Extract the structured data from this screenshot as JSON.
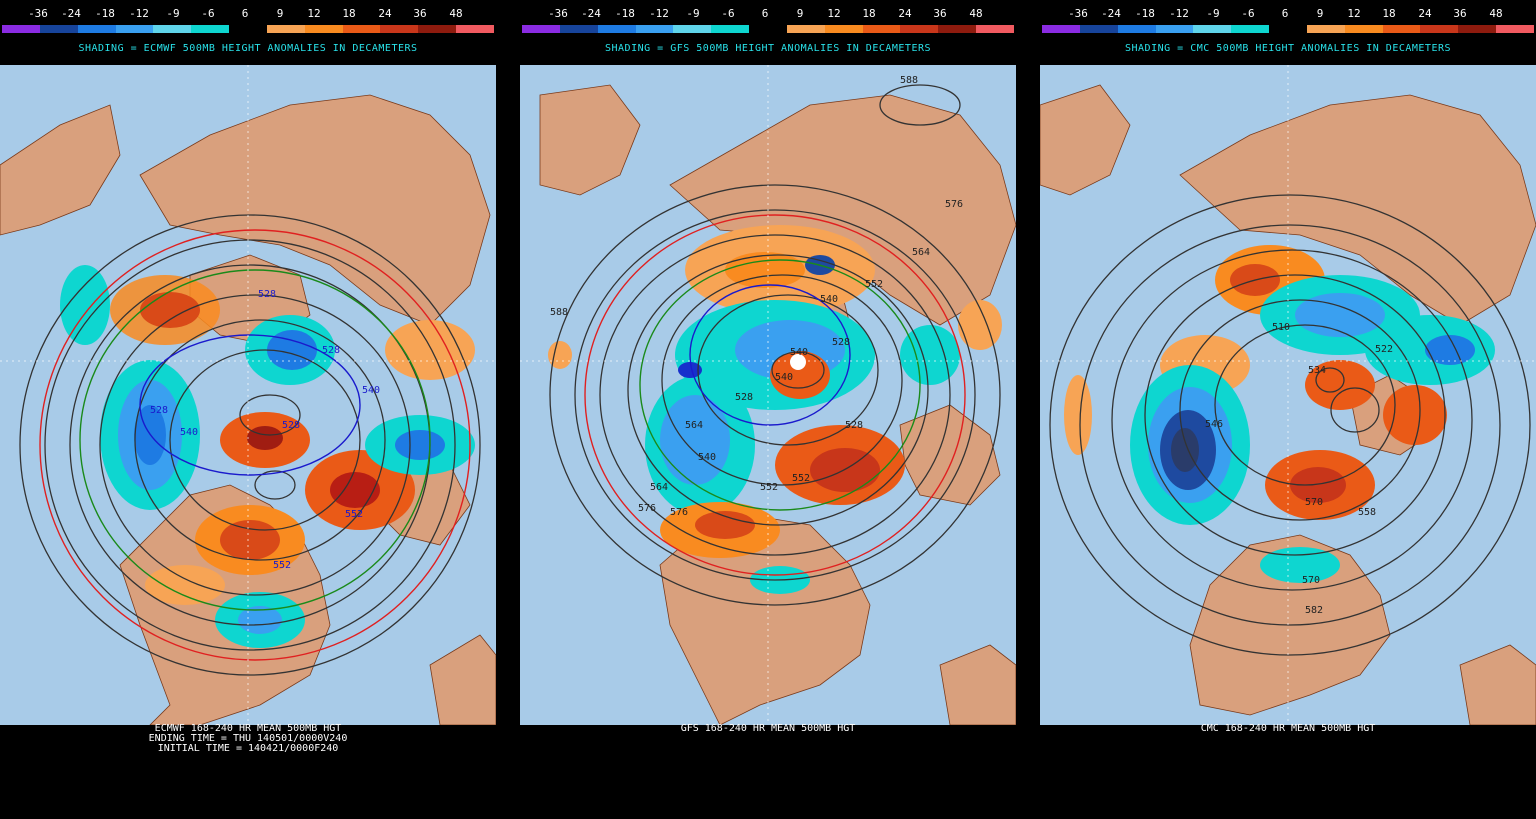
{
  "scale": {
    "labels": [
      "-36",
      "-24",
      "-18",
      "-12",
      "-9",
      "-6",
      "6",
      "9",
      "12",
      "18",
      "24",
      "36",
      "48"
    ],
    "colors": [
      "#8a2be2",
      "#17449b",
      "#1e7be3",
      "#3aa0f0",
      "#5fd4ea",
      "#0ed6d0",
      "#000000",
      "#f7a455",
      "#f98b20",
      "#ea5a17",
      "#c8361a",
      "#8e1b0e",
      "#f05a60"
    ]
  },
  "panels": [
    {
      "title": "SHADING = ECMWF 500MB HEIGHT ANOMALIES IN DECAMETERS",
      "footer": [
        "ECMWF 168-240 HR MEAN 500MB HGT",
        "ENDING TIME = THU 140501/0000V240",
        "INITIAL TIME = 140421/0000F240"
      ],
      "contour_labels": [
        "528",
        "528",
        "528",
        "540",
        "540",
        "552",
        "552",
        "528"
      ]
    },
    {
      "title": "SHADING = GFS 500MB HEIGHT ANOMALIES IN DECAMETERS",
      "footer": [
        "GFS 168-240 HR MEAN 500MB HGT"
      ],
      "contour_labels": [
        "588",
        "576",
        "564",
        "552",
        "540",
        "528",
        "528",
        "540",
        "528",
        "540",
        "588",
        "564",
        "552",
        "576",
        "552",
        "540",
        "564",
        "576"
      ]
    },
    {
      "title": "SHADING = CMC 500MB HEIGHT ANOMALIES IN DECAMETERS",
      "footer": [
        "CMC 168-240 HR MEAN 500MB HGT"
      ],
      "contour_labels": [
        "510",
        "522",
        "534",
        "546",
        "570",
        "558",
        "570",
        "582"
      ]
    }
  ],
  "icons": {
    "land": "land-shape",
    "anomaly": "anomaly-blob"
  }
}
